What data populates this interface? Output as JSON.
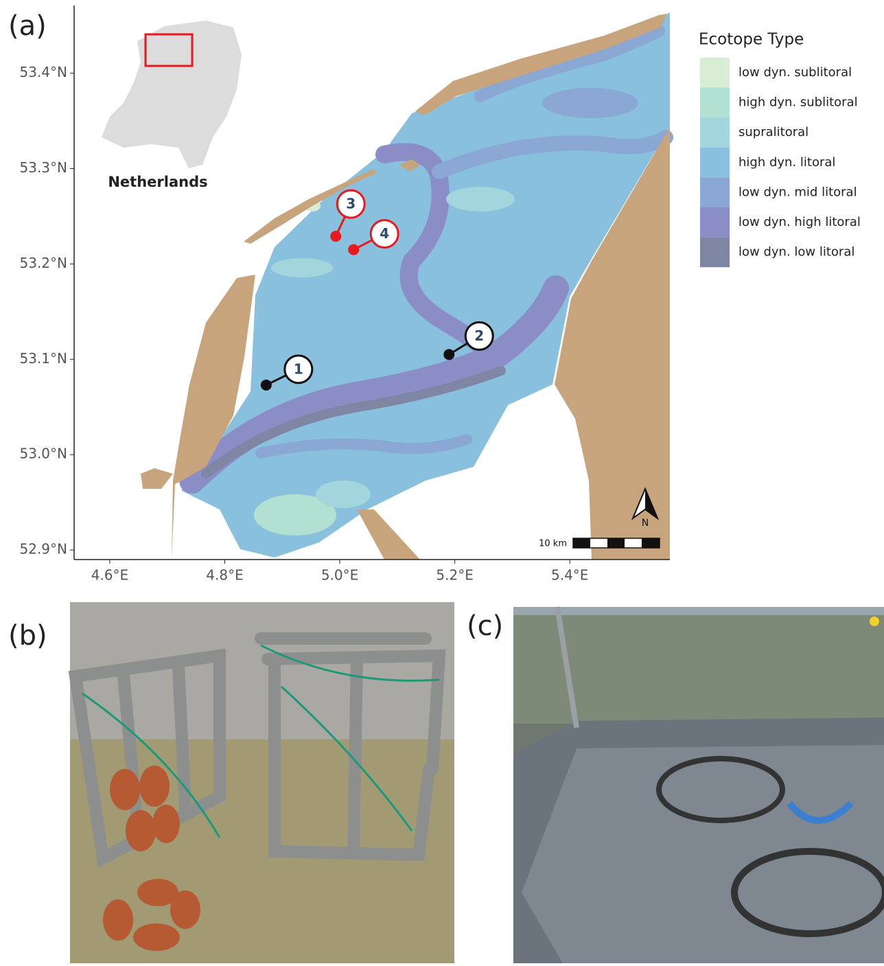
{
  "panels": {
    "a": "(a)",
    "b": "(b)",
    "c": "(c)"
  },
  "map": {
    "xlim": [
      4.538,
      5.574
    ],
    "ylim": [
      52.89,
      53.471
    ],
    "xticks": [
      {
        "value": 4.6,
        "label": "4.6°E"
      },
      {
        "value": 4.8,
        "label": "4.8°E"
      },
      {
        "value": 5.0,
        "label": "5.0°E"
      },
      {
        "value": 5.2,
        "label": "5.2°E"
      },
      {
        "value": 5.4,
        "label": "5.4°E"
      }
    ],
    "yticks": [
      {
        "value": 52.9,
        "label": "52.9°N"
      },
      {
        "value": 53.0,
        "label": "53.0°N"
      },
      {
        "value": 53.1,
        "label": "53.1°N"
      },
      {
        "value": 53.2,
        "label": "53.2°N"
      },
      {
        "value": 53.3,
        "label": "53.3°N"
      },
      {
        "value": 53.4,
        "label": "53.4°N"
      }
    ],
    "inset_label": "Netherlands",
    "scale_label": "10 km",
    "north_label": "N",
    "sites": [
      {
        "label": "1",
        "lon": 4.872,
        "lat": 53.073,
        "color": "#111111"
      },
      {
        "label": "2",
        "lon": 5.19,
        "lat": 53.105,
        "color": "#111111"
      },
      {
        "label": "3",
        "lon": 4.993,
        "lat": 53.229,
        "color": "#e8191c"
      },
      {
        "label": "4",
        "lon": 5.024,
        "lat": 53.215,
        "color": "#e8191c"
      }
    ]
  },
  "legend": {
    "title": "Ecotope Type",
    "entries": [
      {
        "name": "low dyn. sublitoral",
        "color": "#d8edd3"
      },
      {
        "name": "high dyn. sublitoral",
        "color": "#b2e0d2"
      },
      {
        "name": "supralitoral",
        "color": "#a3d5dc"
      },
      {
        "name": "high dyn. litoral",
        "color": "#88c0dd"
      },
      {
        "name": "low dyn. mid litoral",
        "color": "#8ba7d3"
      },
      {
        "name": "low dyn. high litoral",
        "color": "#8a8dc6"
      },
      {
        "name": "low dyn. low litoral",
        "color": "#7e86a4"
      }
    ]
  }
}
